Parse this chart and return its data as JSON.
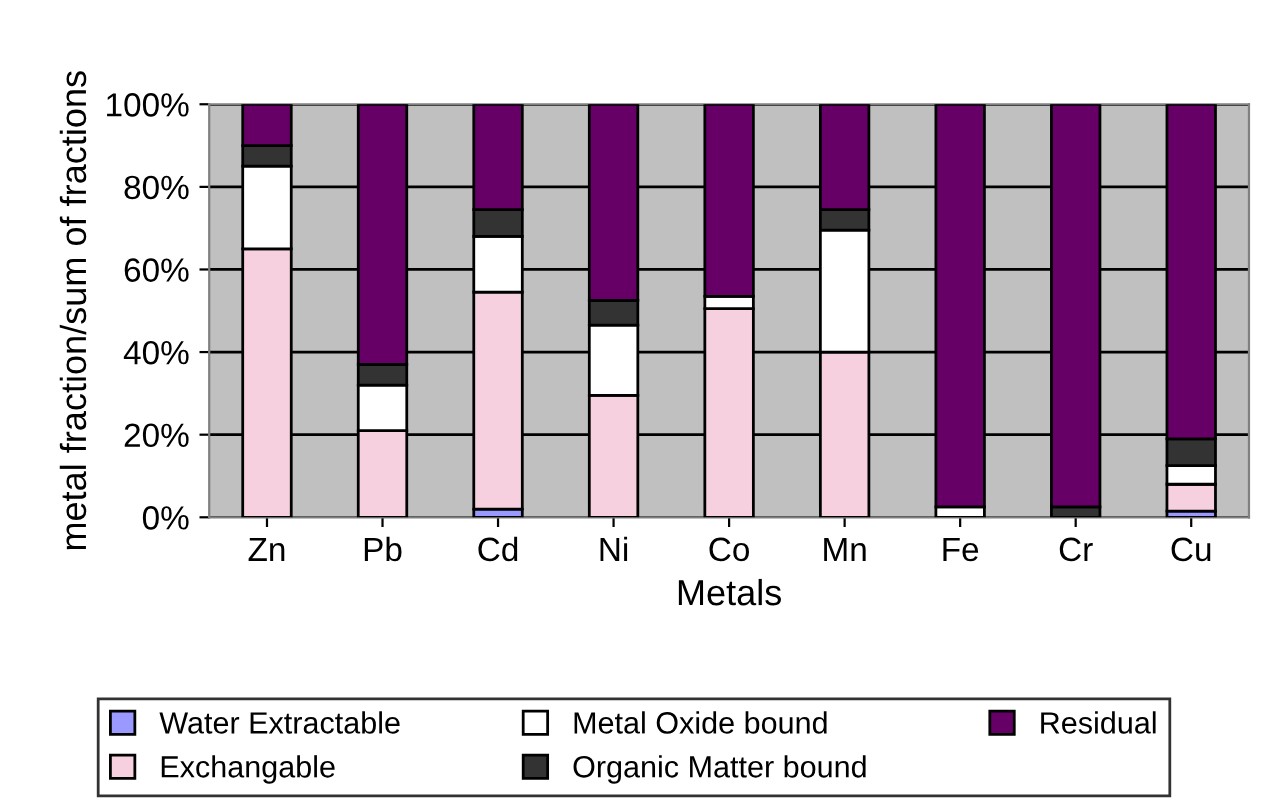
{
  "chart_data": {
    "type": "bar",
    "stacked": true,
    "xlabel": "Metals",
    "ylabel": "metal fraction/sum of fractions",
    "categories": [
      "Zn",
      "Pb",
      "Cd",
      "Ni",
      "Co",
      "Mn",
      "Fe",
      "Cr",
      "Cu"
    ],
    "series": [
      {
        "name": "Water Extractable",
        "color": "#9999ff",
        "values": [
          null,
          null,
          2,
          null,
          null,
          null,
          null,
          null,
          1.5
        ]
      },
      {
        "name": "Exchangable",
        "color": "#f7d0e0",
        "values": [
          65,
          21,
          52.5,
          29.5,
          50.5,
          40,
          null,
          null,
          6.5
        ]
      },
      {
        "name": "Metal Oxide bound",
        "color": "#ffffff",
        "values": [
          20,
          11,
          13.5,
          17,
          3,
          29.5,
          2.5,
          null,
          4.5
        ]
      },
      {
        "name": "Organic Matter bound",
        "color": "#333333",
        "values": [
          5,
          5,
          6.5,
          6,
          null,
          5,
          null,
          2.5,
          6.5
        ]
      },
      {
        "name": "Residual",
        "color": "#660066",
        "values": [
          10,
          63,
          25.5,
          47.5,
          46.5,
          25.5,
          97.5,
          97.5,
          81
        ]
      }
    ],
    "ylim": [
      0,
      100
    ],
    "yticks": [
      {
        "value": 0,
        "label": "0%"
      },
      {
        "value": 20,
        "label": "20%"
      },
      {
        "value": 40,
        "label": "40%"
      },
      {
        "value": 60,
        "label": "60%"
      },
      {
        "value": 80,
        "label": "80%"
      },
      {
        "value": 100,
        "label": "100%"
      }
    ],
    "grid": "y",
    "legend": "bottom"
  }
}
